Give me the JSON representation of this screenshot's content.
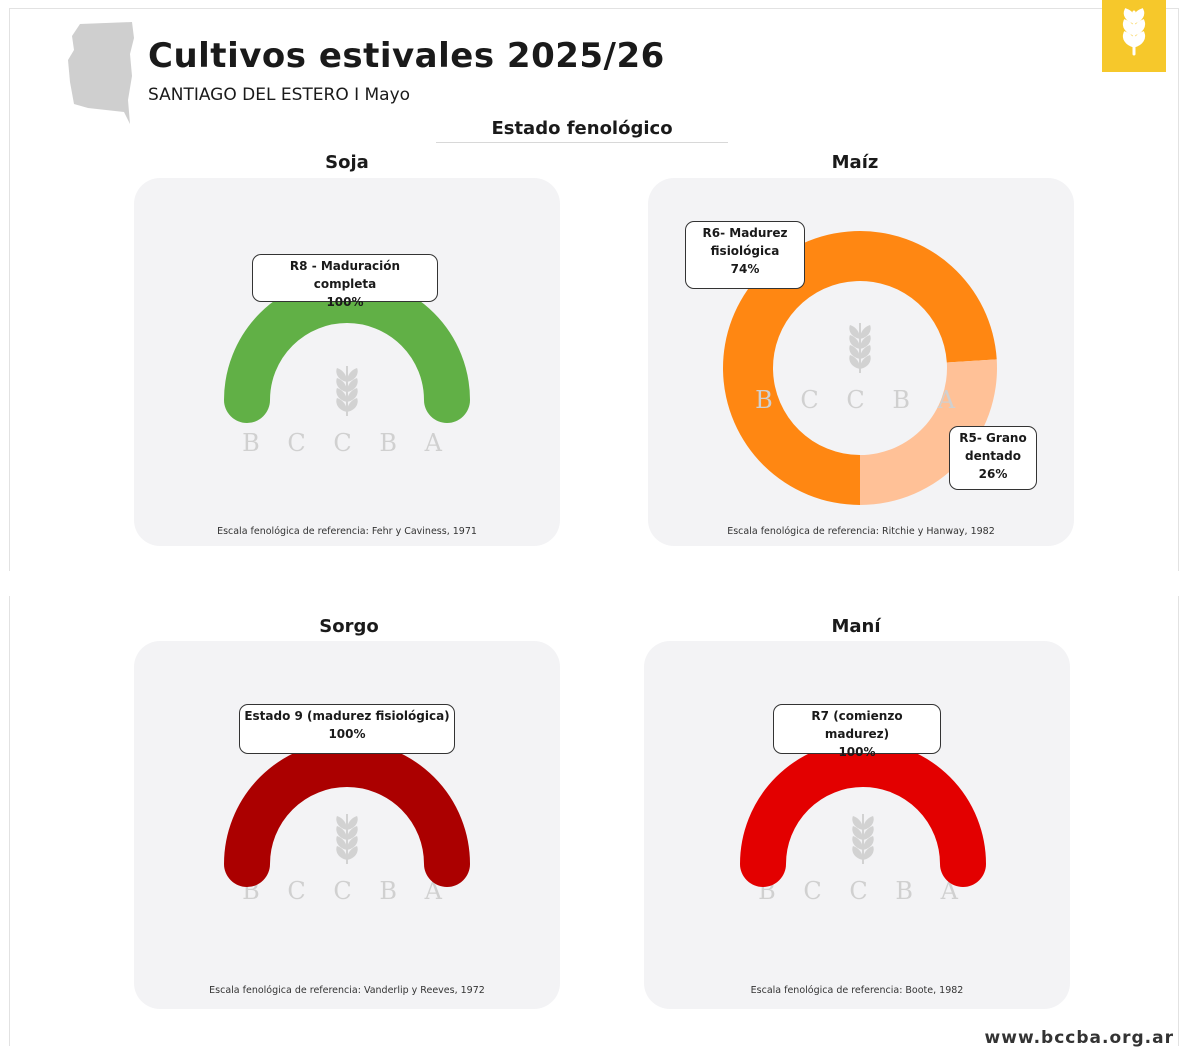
{
  "header": {
    "title": "Cultivos estivales 2025/26",
    "subtitle": "SANTIAGO DEL ESTERO I Mayo",
    "section_title": "Estado fenológico"
  },
  "footer": {
    "url": "www.bccba.org.ar"
  },
  "watermark_text": "BCCBA",
  "colors": {
    "soja": "#61b046",
    "maiz_r6": "#ff8712",
    "maiz_r5": "#ffc197",
    "sorgo": "#ab0000",
    "mani": "#e30000",
    "logo": "#f6c82b",
    "map": "#cfcfcf"
  },
  "icons": {
    "logo": "wheat-icon",
    "map": "province-map-icon",
    "watermark": "wheat-icon"
  },
  "chart_data": [
    {
      "type": "pie",
      "title": "Soja",
      "labels": [
        "R8 - Maduración completa"
      ],
      "values": [
        100
      ],
      "value_labels": [
        "100%"
      ],
      "colors": [
        "#61b046"
      ],
      "note": "Escala fenológica de referencia: Fehr y Caviness, 1971"
    },
    {
      "type": "pie",
      "title": "Maíz",
      "labels": [
        "R6- Madurez fisiológica",
        "R5- Grano dentado"
      ],
      "values": [
        74,
        26
      ],
      "value_labels": [
        "74%",
        "26%"
      ],
      "colors": [
        "#ff8712",
        "#ffc197"
      ],
      "note": "Escala fenológica de referencia: Ritchie y Hanway, 1982"
    },
    {
      "type": "pie",
      "title": "Sorgo",
      "labels": [
        "Estado 9 (madurez fisiológica)"
      ],
      "values": [
        100
      ],
      "value_labels": [
        "100%"
      ],
      "colors": [
        "#ab0000"
      ],
      "note": "Escala fenológica de referencia: Vanderlip y Reeves, 1972"
    },
    {
      "type": "pie",
      "title": "Maní",
      "labels": [
        "R7 (comienzo madurez)"
      ],
      "values": [
        100
      ],
      "value_labels": [
        "100%"
      ],
      "colors": [
        "#e30000"
      ],
      "note": "Escala fenológica de referencia: Boote, 1982"
    }
  ]
}
